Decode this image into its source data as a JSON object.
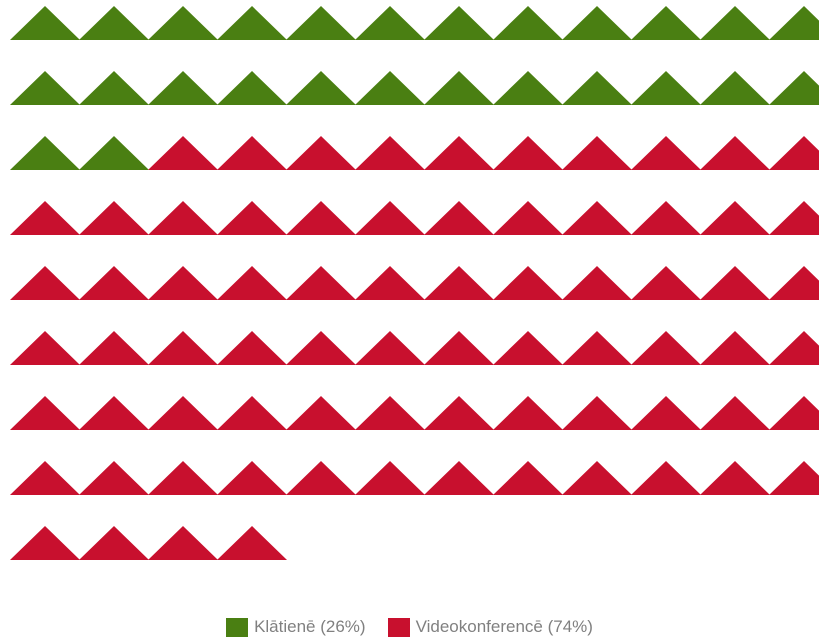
{
  "chart_data": {
    "type": "waffle",
    "marker": "triangle-icon",
    "columns": 12,
    "total_units": 100,
    "series": [
      {
        "name": "Klātienē",
        "value": 26,
        "label": "Klātienē (26%)",
        "color": "#4a7f12"
      },
      {
        "name": "Videokonferencē",
        "value": 74,
        "label": "Videokonferencē (74%)",
        "color": "#c8102e"
      }
    ],
    "legend_position": "bottom-center"
  }
}
